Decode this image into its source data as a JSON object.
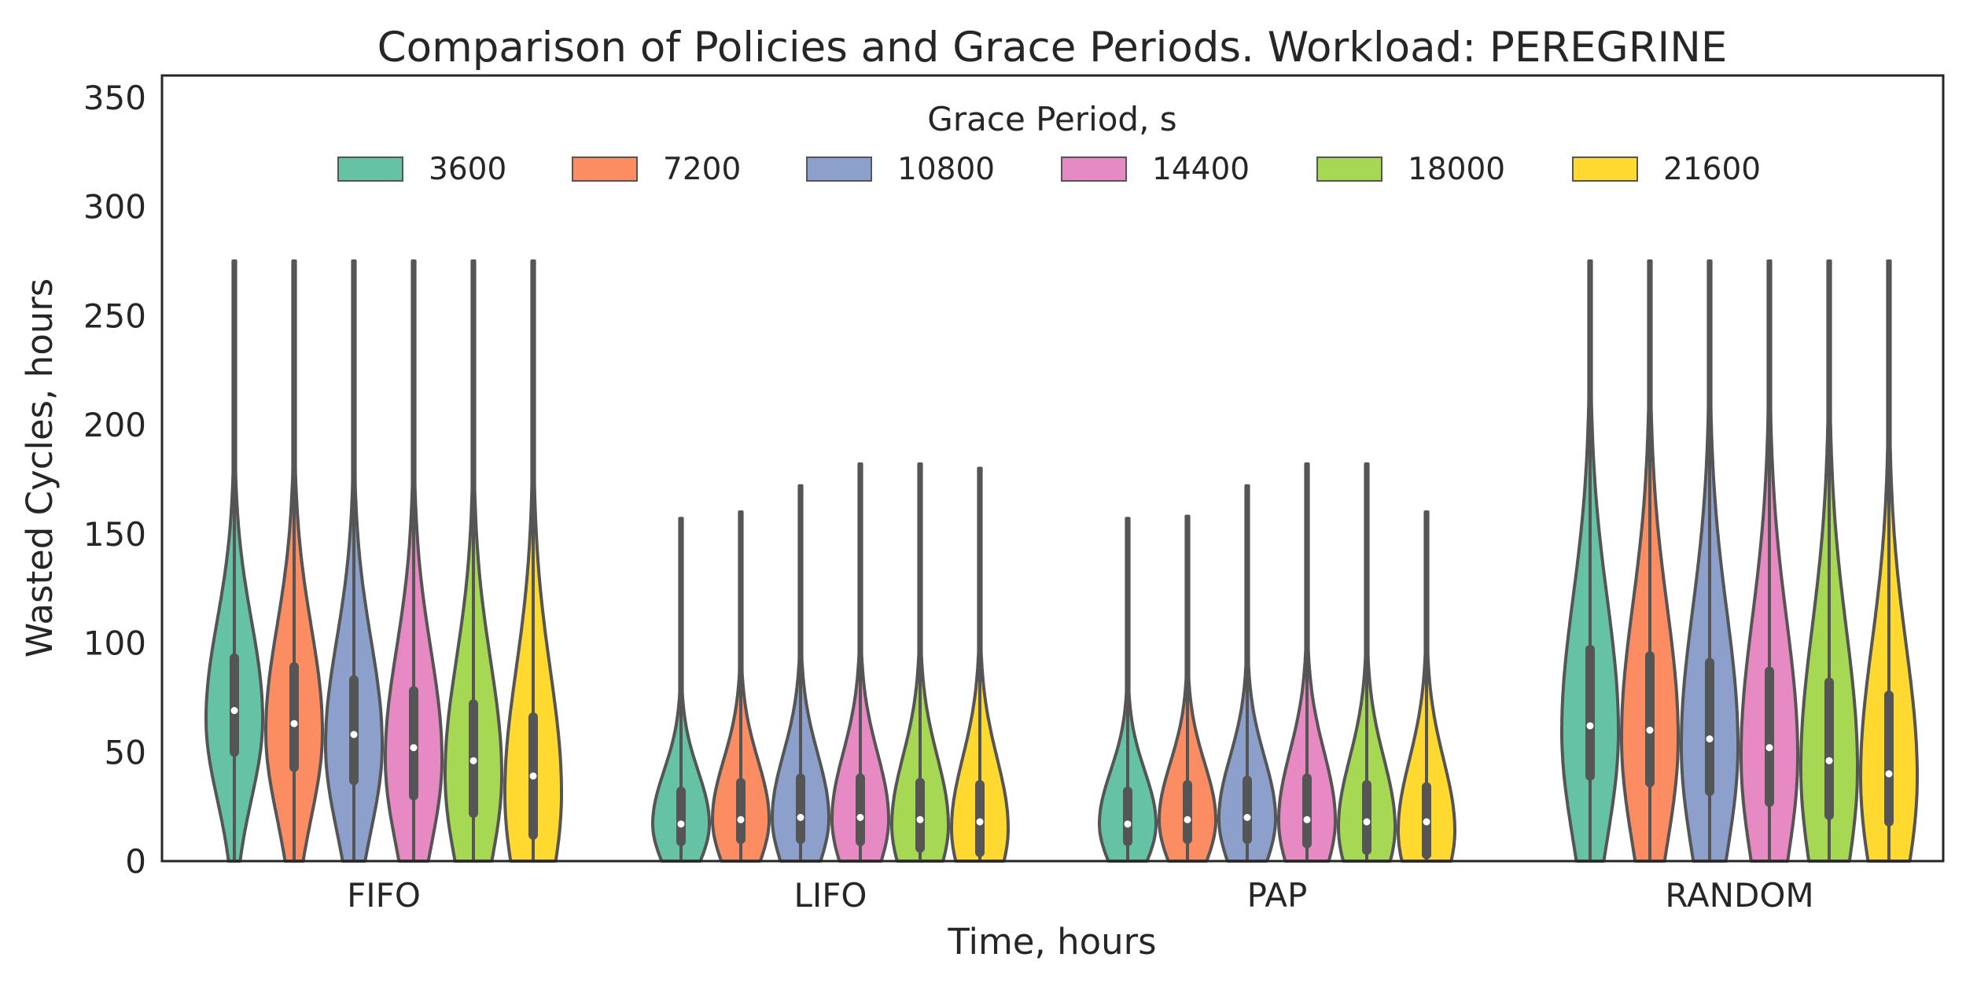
{
  "chart_data": {
    "type": "violin",
    "title": "Comparison of Policies and Grace Periods. Workload: PEREGRINE",
    "xlabel": "Time, hours",
    "ylabel": "Wasted Cycles, hours",
    "ylim": [
      0,
      360
    ],
    "yticks": [
      0,
      50,
      100,
      150,
      200,
      250,
      300,
      350
    ],
    "grid": false,
    "legend": {
      "title": "Grace Period, s",
      "placement": "top-center",
      "columns": 6
    },
    "categories": [
      "FIFO",
      "LIFO",
      "PAP",
      "RANDOM"
    ],
    "series": [
      {
        "name": "3600",
        "color": "#66c2a5",
        "values": [
          {
            "category": "FIFO",
            "min": 0,
            "max": 275,
            "q1": 50,
            "median": 69,
            "q3": 93
          },
          {
            "category": "LIFO",
            "min": 0,
            "max": 157,
            "q1": 9,
            "median": 17,
            "q3": 32
          },
          {
            "category": "PAP",
            "min": 0,
            "max": 157,
            "q1": 9,
            "median": 17,
            "q3": 32
          },
          {
            "category": "RANDOM",
            "min": 0,
            "max": 275,
            "q1": 39,
            "median": 62,
            "q3": 97
          }
        ]
      },
      {
        "name": "7200",
        "color": "#fc8d62",
        "values": [
          {
            "category": "FIFO",
            "min": 0,
            "max": 275,
            "q1": 43,
            "median": 63,
            "q3": 89
          },
          {
            "category": "LIFO",
            "min": 0,
            "max": 160,
            "q1": 10,
            "median": 19,
            "q3": 36
          },
          {
            "category": "PAP",
            "min": 0,
            "max": 158,
            "q1": 10,
            "median": 19,
            "q3": 35
          },
          {
            "category": "RANDOM",
            "min": 0,
            "max": 275,
            "q1": 36,
            "median": 60,
            "q3": 94
          }
        ]
      },
      {
        "name": "10800",
        "color": "#8da0cb",
        "values": [
          {
            "category": "FIFO",
            "min": 0,
            "max": 275,
            "q1": 37,
            "median": 58,
            "q3": 83
          },
          {
            "category": "LIFO",
            "min": 0,
            "max": 172,
            "q1": 10,
            "median": 20,
            "q3": 38
          },
          {
            "category": "PAP",
            "min": 0,
            "max": 172,
            "q1": 10,
            "median": 20,
            "q3": 37
          },
          {
            "category": "RANDOM",
            "min": 0,
            "max": 275,
            "q1": 32,
            "median": 56,
            "q3": 91
          }
        ]
      },
      {
        "name": "14400",
        "color": "#e78ac3",
        "values": [
          {
            "category": "FIFO",
            "min": 0,
            "max": 275,
            "q1": 30,
            "median": 52,
            "q3": 78
          },
          {
            "category": "LIFO",
            "min": 0,
            "max": 182,
            "q1": 9,
            "median": 20,
            "q3": 38
          },
          {
            "category": "PAP",
            "min": 0,
            "max": 182,
            "q1": 8,
            "median": 19,
            "q3": 38
          },
          {
            "category": "RANDOM",
            "min": 0,
            "max": 275,
            "q1": 27,
            "median": 52,
            "q3": 87
          }
        ]
      },
      {
        "name": "18000",
        "color": "#a6d854",
        "values": [
          {
            "category": "FIFO",
            "min": 0,
            "max": 275,
            "q1": 22,
            "median": 46,
            "q3": 72
          },
          {
            "category": "LIFO",
            "min": 0,
            "max": 182,
            "q1": 6,
            "median": 19,
            "q3": 36
          },
          {
            "category": "PAP",
            "min": 0,
            "max": 182,
            "q1": 5,
            "median": 18,
            "q3": 35
          },
          {
            "category": "RANDOM",
            "min": 0,
            "max": 275,
            "q1": 21,
            "median": 46,
            "q3": 82
          }
        ]
      },
      {
        "name": "21600",
        "color": "#ffd92f",
        "values": [
          {
            "category": "FIFO",
            "min": 0,
            "max": 275,
            "q1": 12,
            "median": 39,
            "q3": 66
          },
          {
            "category": "LIFO",
            "min": 0,
            "max": 180,
            "q1": 4,
            "median": 18,
            "q3": 35
          },
          {
            "category": "PAP",
            "min": 0,
            "max": 160,
            "q1": 3,
            "median": 18,
            "q3": 34
          },
          {
            "category": "RANDOM",
            "min": 0,
            "max": 275,
            "q1": 18,
            "median": 40,
            "q3": 76
          }
        ]
      }
    ]
  }
}
